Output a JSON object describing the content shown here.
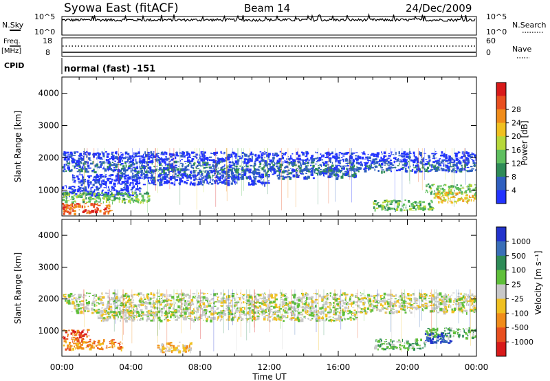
{
  "header": {
    "station": "Syowa East (fitACF)",
    "beam": "Beam 14",
    "date": "24/Dec/2009"
  },
  "top_panels": {
    "nsky_label": "N.Sky",
    "nsky_ticks": [
      "10^5",
      "10^0"
    ],
    "nsearch_label": "N.Search",
    "nsearch_ticks": [
      "10^5",
      "10^0"
    ],
    "freq_label": "Freq.",
    "freq_unit": "[MHz]",
    "freq_ticks": [
      "18",
      "8"
    ],
    "nave_label": "Nave",
    "nave_ticks": [
      "60",
      "0"
    ],
    "cpid_label": "CPID",
    "cpid_value": "normal (fast) -151"
  },
  "chart_data": [
    {
      "type": "heatmap",
      "name": "power",
      "ylabel": "Slant Range [km]",
      "yticks": [
        "1000",
        "2000",
        "3000",
        "4000"
      ],
      "ylim": [
        200,
        4500
      ],
      "xticks": [
        "00:00",
        "04:00",
        "08:00",
        "12:00",
        "16:00",
        "20:00",
        "00:00"
      ],
      "colorbar": {
        "label": "Power [dB]",
        "ticks": [
          "4",
          "8",
          "12",
          "16",
          "20",
          "24",
          "28"
        ],
        "colors": [
          "#2233ff",
          "#2f5fbf",
          "#2e8b57",
          "#5fbf5f",
          "#b7d83b",
          "#f0c020",
          "#f08c1a",
          "#e84f1f",
          "#d81a1a"
        ]
      },
      "bands": [
        {
          "km": 1750,
          "t0": 0.0,
          "t1": 24.0,
          "level": 1
        },
        {
          "km": 2050,
          "t0": 0.0,
          "t1": 24.0,
          "level": 0
        },
        {
          "km": 1550,
          "t0": 3.0,
          "t1": 17.0,
          "level": 1
        },
        {
          "km": 1350,
          "t0": 0.5,
          "t1": 12.0,
          "level": 0
        },
        {
          "km": 1000,
          "t0": 0.0,
          "t1": 4.5,
          "level": 0
        },
        {
          "km": 800,
          "t0": 0.0,
          "t1": 5.0,
          "level": 3
        },
        {
          "km": 450,
          "t0": 0.0,
          "t1": 2.8,
          "level": 7
        },
        {
          "km": 1050,
          "t0": 21.0,
          "t1": 24.0,
          "level": 3
        },
        {
          "km": 800,
          "t0": 21.5,
          "t1": 24.0,
          "level": 5
        },
        {
          "km": 550,
          "t0": 18.0,
          "t1": 21.5,
          "level": 3
        }
      ]
    },
    {
      "type": "heatmap",
      "name": "velocity",
      "ylabel": "Slant Range [km]",
      "yticks": [
        "1000",
        "2000",
        "3000",
        "4000"
      ],
      "ylim": [
        200,
        4500
      ],
      "xlabel": "Time UT",
      "xticks": [
        "00:00",
        "04:00",
        "08:00",
        "12:00",
        "16:00",
        "20:00",
        "00:00"
      ],
      "colorbar": {
        "label": "Velocity [m s⁻¹]",
        "ticks": [
          "1000",
          "500",
          "100",
          "25",
          "-25",
          "-100",
          "-500",
          "-1000"
        ],
        "colors": [
          "#2233cc",
          "#3a6fb8",
          "#2e8b57",
          "#5fbf3a",
          "#c8c8c8",
          "#f0c020",
          "#f08c1a",
          "#e84f1f",
          "#d81a1a"
        ]
      },
      "bands": [
        {
          "km": 1750,
          "t0": 0.5,
          "t1": 24.0,
          "level": 4
        },
        {
          "km": 1500,
          "t0": 2.0,
          "t1": 17.0,
          "level": 4
        },
        {
          "km": 2050,
          "t0": 0.0,
          "t1": 24.0,
          "level": 4
        },
        {
          "km": 600,
          "t0": 0.0,
          "t1": 3.5,
          "level": 6
        },
        {
          "km": 900,
          "t0": 0.0,
          "t1": 1.5,
          "level": 7
        },
        {
          "km": 500,
          "t0": 5.5,
          "t1": 7.5,
          "level": 5
        },
        {
          "km": 950,
          "t0": 21.0,
          "t1": 24.0,
          "level": 3
        },
        {
          "km": 800,
          "t0": 21.0,
          "t1": 22.5,
          "level": 0
        },
        {
          "km": 600,
          "t0": 18.0,
          "t1": 21.0,
          "level": 3
        }
      ]
    }
  ]
}
